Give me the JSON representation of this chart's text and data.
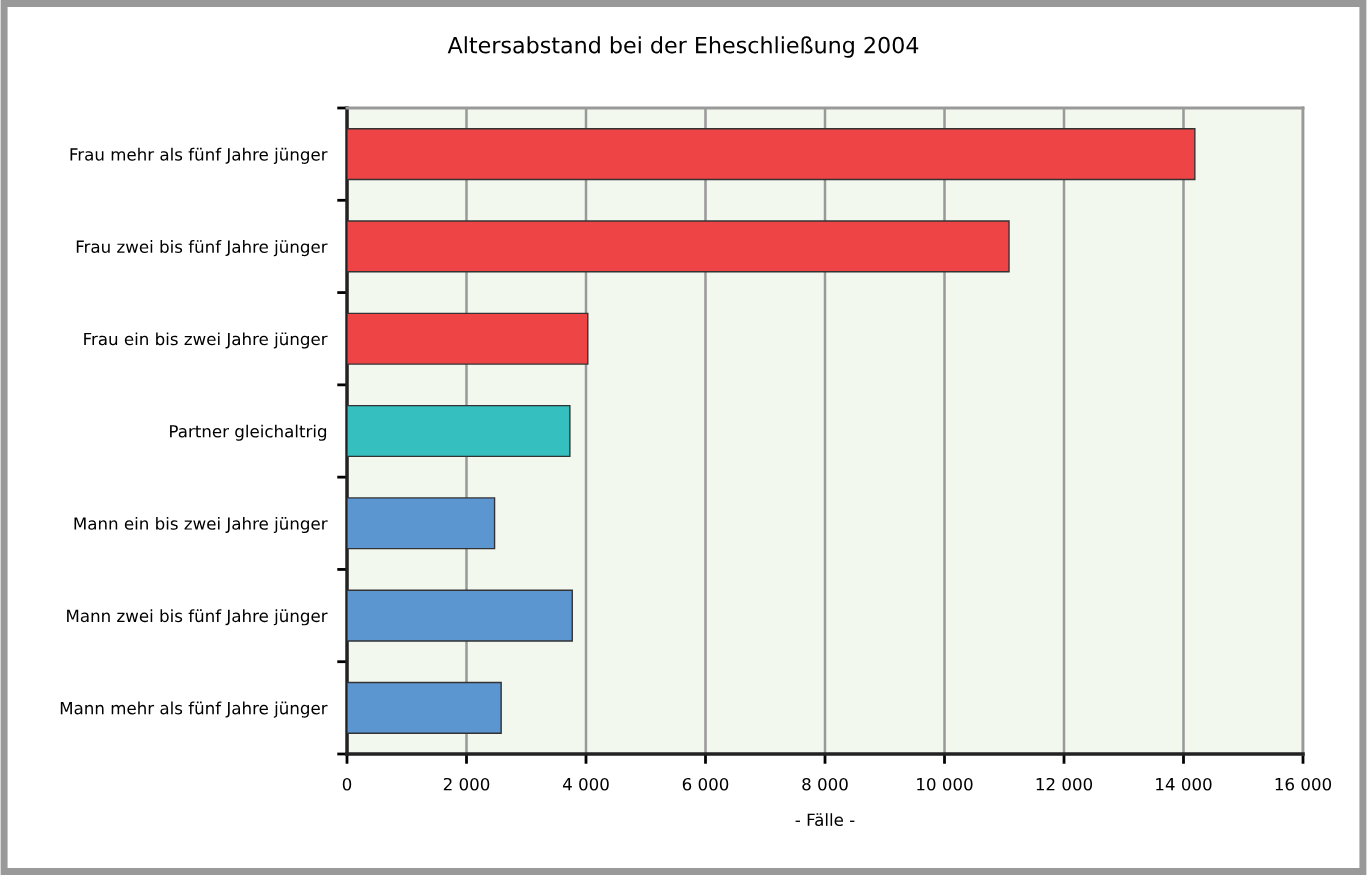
{
  "chart_data": {
    "type": "bar",
    "orientation": "horizontal",
    "title": "Altersabstand bei der Eheschließung 2004",
    "xlabel": "- Fälle -",
    "categories": [
      "Frau mehr als fünf Jahre jünger",
      "Frau zwei bis fünf Jahre jünger",
      "Frau ein bis zwei Jahre jünger",
      "Partner gleichaltrig",
      "Mann ein bis zwei Jahre jünger",
      "Mann zwei bis fünf Jahre jünger",
      "Mann mehr als fünf Jahre jünger"
    ],
    "values": [
      14190,
      11080,
      4030,
      3730,
      2470,
      3770,
      2580
    ],
    "colors": [
      "#ef4446",
      "#ef4446",
      "#ef4446",
      "#35bfbf",
      "#5b96d0",
      "#5b96d0",
      "#5b96d0"
    ],
    "xlim": [
      0,
      16000
    ],
    "xticks": [
      0,
      {
        "value": 2000,
        "label": "2 000"
      },
      {
        "value": 4000,
        "label": "4 000"
      },
      {
        "value": 6000,
        "label": "6 000"
      },
      {
        "value": 8000,
        "label": "8 000"
      },
      {
        "value": 10000,
        "label": "10 000"
      },
      {
        "value": 12000,
        "label": "12 000"
      },
      {
        "value": 14000,
        "label": "14 000"
      },
      {
        "value": 16000,
        "label": "16 000"
      }
    ],
    "grid": "x"
  }
}
